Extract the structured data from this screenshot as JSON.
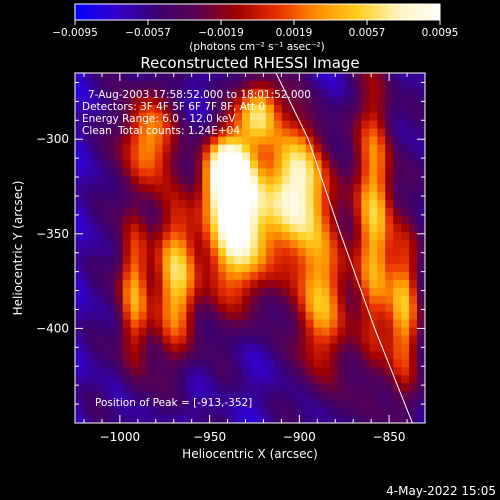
{
  "chart_data": {
    "type": "heatmap",
    "title": "Reconstructed RHESSI Image",
    "xlabel": "Heliocentric X (arcsec)",
    "ylabel": "Heliocentric Y (arcsec)",
    "xlim": [
      -1025,
      -830
    ],
    "ylim": [
      -450,
      -265
    ],
    "xticks": [
      -1000,
      -950,
      -900,
      -850
    ],
    "xtick_labels": [
      "−1000",
      "−950",
      "−900",
      "−850"
    ],
    "yticks": [
      -300,
      -350,
      -400
    ],
    "ytick_labels": [
      "−300",
      "−350",
      "−400"
    ],
    "colorbar": {
      "min": -0.0095,
      "max": 0.0095,
      "ticks": [
        -0.0095,
        -0.0057,
        -0.0019,
        0.0019,
        0.0057,
        0.0095
      ],
      "tick_labels": [
        "−0.0095",
        "−0.0057",
        "−0.0019",
        "0.0019",
        "0.0057",
        "0.0095"
      ],
      "unit_label": "(photons cm⁻² s⁻¹ asec⁻²)",
      "colors": [
        "#0000ff",
        "#3200cc",
        "#3a0070",
        "#5a0050",
        "#a00000",
        "#e83000",
        "#ff9000",
        "#ffd020",
        "#fff4c0",
        "#ffffff"
      ]
    },
    "annotations": [
      "7-Aug-2003 17:58:52.000 to 18:01:52.000",
      "Detectors: 3F 4F 5F 6F 7F 8F, Att 0",
      "Energy Range: 6.0 - 12.0 keV",
      "Clean",
      "Total counts: 1.24E+04"
    ],
    "peak_label": "Position of Peak = [-913,-352]",
    "peak": {
      "x": -913,
      "y": -352
    },
    "limb_curve": [
      [
        -913,
        -265
      ],
      [
        -895,
        -300
      ],
      [
        -877,
        -350
      ],
      [
        -858,
        -400
      ],
      [
        -837,
        -450
      ]
    ],
    "grid": false,
    "emission_sources": [
      {
        "x": -933,
        "y": -345,
        "sx": 14,
        "sy": 28,
        "amp": 0.0095
      },
      {
        "x": -940,
        "y": -318,
        "sx": 9,
        "sy": 14,
        "amp": 0.0075
      },
      {
        "x": -900,
        "y": -325,
        "sx": 12,
        "sy": 24,
        "amp": 0.007
      },
      {
        "x": -922,
        "y": -285,
        "sx": 8,
        "sy": 12,
        "amp": 0.005
      },
      {
        "x": -968,
        "y": -375,
        "sx": 8,
        "sy": 28,
        "amp": 0.0055
      },
      {
        "x": -992,
        "y": -380,
        "sx": 6,
        "sy": 30,
        "amp": 0.0045
      },
      {
        "x": -888,
        "y": -385,
        "sx": 9,
        "sy": 30,
        "amp": 0.005
      },
      {
        "x": -858,
        "y": -345,
        "sx": 7,
        "sy": 55,
        "amp": 0.0055
      },
      {
        "x": -842,
        "y": -390,
        "sx": 6,
        "sy": 30,
        "amp": 0.0035
      },
      {
        "x": -985,
        "y": -300,
        "sx": 10,
        "sy": 18,
        "amp": 0.004
      }
    ]
  },
  "footer": {
    "timestamp": "4-May-2022 15:05"
  }
}
